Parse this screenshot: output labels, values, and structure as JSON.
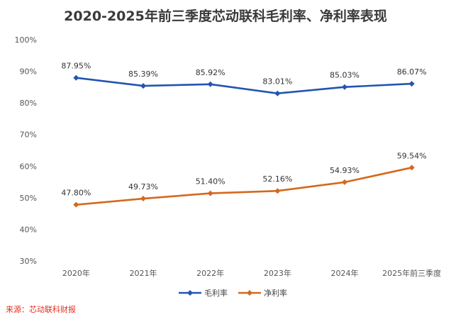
{
  "chart_data": {
    "type": "line",
    "title": "2020-2025年前三季度芯动联科毛利率、净利率表现",
    "categories": [
      "2020年",
      "2021年",
      "2022年",
      "2023年",
      "2024年",
      "2025年前三季度"
    ],
    "series": [
      {
        "name": "毛利率",
        "color": "#2255b0",
        "values": [
          87.95,
          85.39,
          85.92,
          83.01,
          85.03,
          86.07
        ],
        "labels": [
          "87.95%",
          "85.39%",
          "85.92%",
          "83.01%",
          "85.03%",
          "86.07%"
        ]
      },
      {
        "name": "净利率",
        "color": "#d4691e",
        "values": [
          47.8,
          49.73,
          51.4,
          52.16,
          54.93,
          59.54
        ],
        "labels": [
          "47.80%",
          "49.73%",
          "51.40%",
          "52.16%",
          "54.93%",
          "59.54%"
        ]
      }
    ],
    "ylim": [
      30,
      100
    ],
    "yticks": [
      30,
      40,
      50,
      60,
      70,
      80,
      90,
      100
    ],
    "ytick_labels": [
      "30%",
      "40%",
      "50%",
      "60%",
      "70%",
      "80%",
      "90%",
      "100%"
    ],
    "xlabel": "",
    "ylabel": "",
    "legend": "bottom-center",
    "grid": false
  },
  "source": "来源：芯动联科财报"
}
